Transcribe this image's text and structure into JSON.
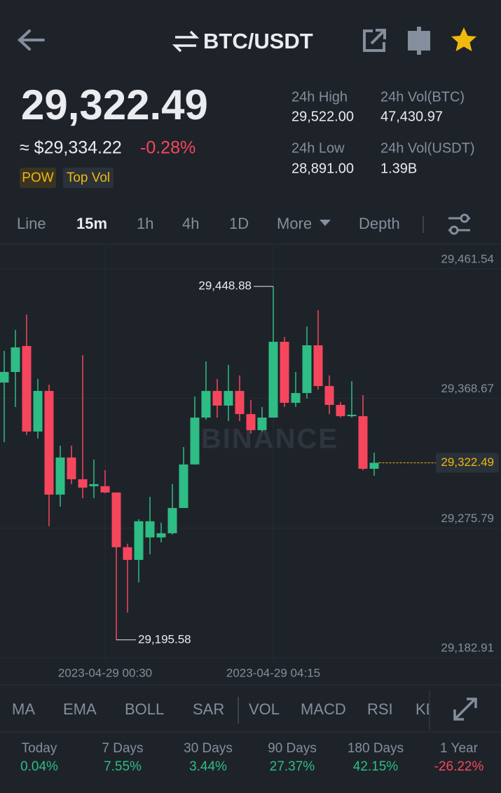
{
  "header": {
    "pair": "BTC/USDT"
  },
  "ticker": {
    "last_price": "29,322.49",
    "usd_price": "≈ $29,334.22",
    "change": "-0.28%",
    "tags": [
      "POW",
      "Top Vol"
    ]
  },
  "stats": [
    {
      "label": "24h High",
      "value": "29,522.00"
    },
    {
      "label": "24h Vol(BTC)",
      "value": "47,430.97"
    },
    {
      "label": "24h Low",
      "value": "28,891.00"
    },
    {
      "label": "24h Vol(USDT)",
      "value": "1.39B"
    }
  ],
  "intervals": [
    "Line",
    "15m",
    "1h",
    "4h",
    "1D",
    "More",
    "Depth"
  ],
  "chart_data": {
    "type": "candlestick",
    "watermark": "BINANCE",
    "categories": [
      null,
      null,
      null,
      null,
      null,
      null,
      null,
      null,
      null,
      "2023-04-29 00:30",
      null,
      null,
      null,
      null,
      null,
      null,
      null,
      null,
      null,
      null,
      null,
      null,
      null,
      null,
      "2023-04-29 04:15",
      null,
      null,
      null,
      null,
      null,
      null,
      null,
      null,
      null
    ],
    "open": [
      29380.0,
      29387.6,
      29406.2,
      29344.9,
      29374.0,
      29299.7,
      29326.3,
      29310.7,
      29305.7,
      29305.7,
      29301.2,
      29262.0,
      29252.9,
      29269.0,
      29269.0,
      29272.0,
      29290.1,
      29321.3,
      29354.9,
      29374.0,
      29363.5,
      29374.0,
      29357.4,
      29345.9,
      29354.9,
      29409.2,
      29365.5,
      29372.5,
      29406.7,
      29377.5,
      29364.0,
      29355.9,
      29355.9,
      29318.2
    ],
    "high": [
      29402.7,
      29417.7,
      29428.8,
      29382.6,
      29378.5,
      29334.8,
      29334.8,
      29399.6,
      29324.8,
      29317.2,
      29301.2,
      29264.5,
      29282.1,
      29298.1,
      29279.6,
      29307.2,
      29333.8,
      29370.0,
      29395.1,
      29382.6,
      29392.6,
      29385.1,
      29367.5,
      29362.5,
      29448.88,
      29412.7,
      29387.6,
      29420.2,
      29431.8,
      29385.1,
      29366.0,
      29381.0,
      29371.0,
      29329.8
    ],
    "low": [
      29337.3,
      29362.5,
      29342.4,
      29339.9,
      29277.0,
      29291.1,
      29307.2,
      29297.1,
      29297.1,
      29300.7,
      29195.58,
      29215.2,
      29236.8,
      29256.9,
      29265.5,
      29271.0,
      29290.1,
      29321.3,
      29353.4,
      29354.9,
      29352.4,
      29352.4,
      29343.4,
      29344.9,
      29354.9,
      29362.5,
      29362.5,
      29368.5,
      29375.0,
      29357.4,
      29354.9,
      29354.9,
      29317.2,
      29313.2
    ],
    "close": [
      29387.6,
      29405.2,
      29344.9,
      29374.0,
      29299.7,
      29326.3,
      29310.7,
      29304.7,
      29307.2,
      29301.2,
      29262.0,
      29252.9,
      29280.6,
      29280.6,
      29272.0,
      29290.1,
      29321.3,
      29354.9,
      29374.0,
      29363.5,
      29374.0,
      29357.4,
      29345.9,
      29354.9,
      29409.2,
      29365.5,
      29372.5,
      29406.7,
      29377.5,
      29364.0,
      29355.9,
      29356.9,
      29318.2,
      29322.49
    ],
    "up_color": "#2ebd85",
    "down_color": "#f6465d",
    "ylim": [
      29182.91,
      29461.54
    ],
    "yticks": [
      {
        "value": 29182.91,
        "label": "29,182.91"
      },
      {
        "value": 29275.79,
        "label": "29,275.79"
      },
      {
        "value": 29368.67,
        "label": "29,368.67"
      },
      {
        "value": 29461.54,
        "label": "29,461.54"
      }
    ],
    "grid": true,
    "annotations": [
      {
        "value": 29448.88,
        "label": "29,448.88"
      },
      {
        "value": 29195.58,
        "label": "29,195.58"
      }
    ],
    "last_price": {
      "value": 29322.49,
      "label": "29,322.49",
      "color": "#f0b90b"
    }
  },
  "indicators": [
    "MA",
    "EMA",
    "BOLL",
    "SAR",
    "VOL",
    "MACD",
    "RSI",
    "KDJ"
  ],
  "performance": [
    {
      "period": "Today",
      "change": "0.04%"
    },
    {
      "period": "7 Days",
      "change": "7.55%"
    },
    {
      "period": "30 Days",
      "change": "3.44%"
    },
    {
      "period": "90 Days",
      "change": "27.37%"
    },
    {
      "period": "180 Days",
      "change": "42.15%"
    },
    {
      "period": "1 Year",
      "change": "-26.22%"
    }
  ]
}
